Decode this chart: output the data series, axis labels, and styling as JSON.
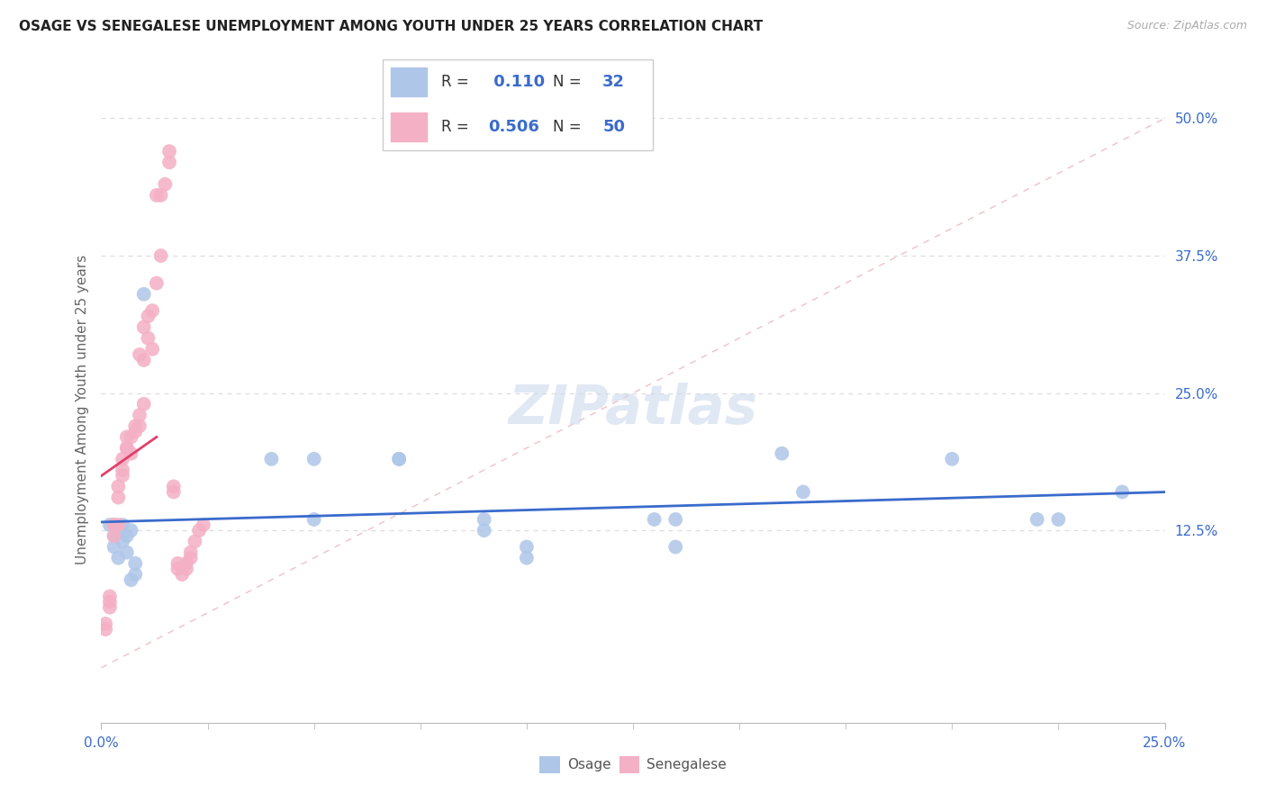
{
  "title": "OSAGE VS SENEGALESE UNEMPLOYMENT AMONG YOUTH UNDER 25 YEARS CORRELATION CHART",
  "source": "Source: ZipAtlas.com",
  "ylabel": "Unemployment Among Youth under 25 years",
  "xlim": [
    0.0,
    0.25
  ],
  "ylim": [
    -0.05,
    0.52
  ],
  "osage_R": 0.11,
  "osage_N": 32,
  "senegalese_R": 0.506,
  "senegalese_N": 50,
  "osage_color": "#aec6e8",
  "osage_line_color": "#3a6bcc",
  "senegalese_color": "#f4b0c4",
  "senegalese_line_color": "#e0406a",
  "background_color": "#ffffff",
  "grid_color": "#dddddd",
  "osage_x": [
    0.002,
    0.003,
    0.003,
    0.004,
    0.004,
    0.005,
    0.005,
    0.006,
    0.006,
    0.007,
    0.007,
    0.008,
    0.008,
    0.01,
    0.04,
    0.05,
    0.05,
    0.07,
    0.07,
    0.09,
    0.09,
    0.1,
    0.1,
    0.13,
    0.135,
    0.135,
    0.16,
    0.165,
    0.2,
    0.22,
    0.225,
    0.24
  ],
  "osage_y": [
    0.13,
    0.12,
    0.11,
    0.125,
    0.1,
    0.13,
    0.115,
    0.12,
    0.105,
    0.125,
    0.08,
    0.085,
    0.095,
    0.34,
    0.19,
    0.19,
    0.135,
    0.19,
    0.19,
    0.135,
    0.125,
    0.11,
    0.1,
    0.135,
    0.135,
    0.11,
    0.195,
    0.16,
    0.19,
    0.135,
    0.135,
    0.16
  ],
  "senegalese_x": [
    0.001,
    0.001,
    0.002,
    0.002,
    0.002,
    0.003,
    0.003,
    0.003,
    0.004,
    0.004,
    0.004,
    0.005,
    0.005,
    0.005,
    0.006,
    0.006,
    0.006,
    0.007,
    0.007,
    0.008,
    0.008,
    0.009,
    0.009,
    0.009,
    0.01,
    0.01,
    0.01,
    0.011,
    0.011,
    0.012,
    0.012,
    0.013,
    0.013,
    0.014,
    0.014,
    0.015,
    0.016,
    0.016,
    0.017,
    0.017,
    0.018,
    0.018,
    0.019,
    0.02,
    0.02,
    0.021,
    0.021,
    0.022,
    0.023,
    0.024
  ],
  "senegalese_y": [
    0.035,
    0.04,
    0.06,
    0.065,
    0.055,
    0.13,
    0.13,
    0.12,
    0.13,
    0.155,
    0.165,
    0.175,
    0.18,
    0.19,
    0.2,
    0.2,
    0.21,
    0.195,
    0.21,
    0.22,
    0.215,
    0.22,
    0.23,
    0.285,
    0.24,
    0.28,
    0.31,
    0.3,
    0.32,
    0.325,
    0.29,
    0.35,
    0.43,
    0.43,
    0.375,
    0.44,
    0.46,
    0.47,
    0.165,
    0.16,
    0.095,
    0.09,
    0.085,
    0.09,
    0.095,
    0.1,
    0.105,
    0.115,
    0.125,
    0.13
  ],
  "ytick_vals": [
    0.125,
    0.25,
    0.375,
    0.5
  ],
  "ytick_labels": [
    "12.5%",
    "25.0%",
    "37.5%",
    "50.0%"
  ]
}
